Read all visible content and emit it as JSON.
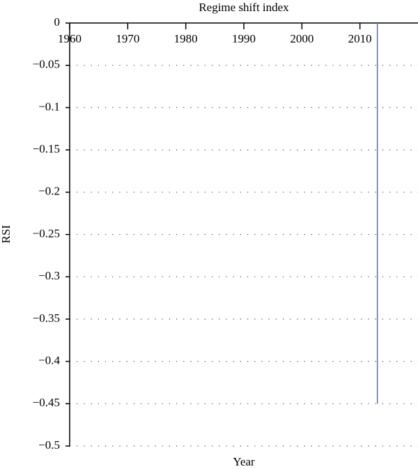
{
  "chart_data": {
    "type": "bar",
    "title": "Regime shift index",
    "xlabel": "Year",
    "ylabel": "RSI",
    "x": [
      2013
    ],
    "values": [
      -0.45
    ],
    "color": "#4a72c4",
    "xlim": [
      1960,
      2020
    ],
    "xticks": [
      1960,
      1970,
      1980,
      1990,
      2000,
      2010
    ],
    "ylim": [
      -0.5,
      0
    ],
    "yticks": [
      0,
      {
        "value": -0.05,
        "label": "−0.05"
      },
      {
        "value": -0.1,
        "label": "−0.1"
      },
      {
        "value": -0.15,
        "label": "−0.15"
      },
      {
        "value": -0.2,
        "label": "−0.2"
      },
      {
        "value": -0.25,
        "label": "−0.25"
      },
      {
        "value": -0.3,
        "label": "−0.3"
      },
      {
        "value": -0.35,
        "label": "−0.35"
      },
      {
        "value": -0.4,
        "label": "−0.4"
      },
      {
        "value": -0.45,
        "label": "−0.45"
      },
      {
        "value": -0.5,
        "label": "−0.5"
      }
    ],
    "grid": true
  }
}
